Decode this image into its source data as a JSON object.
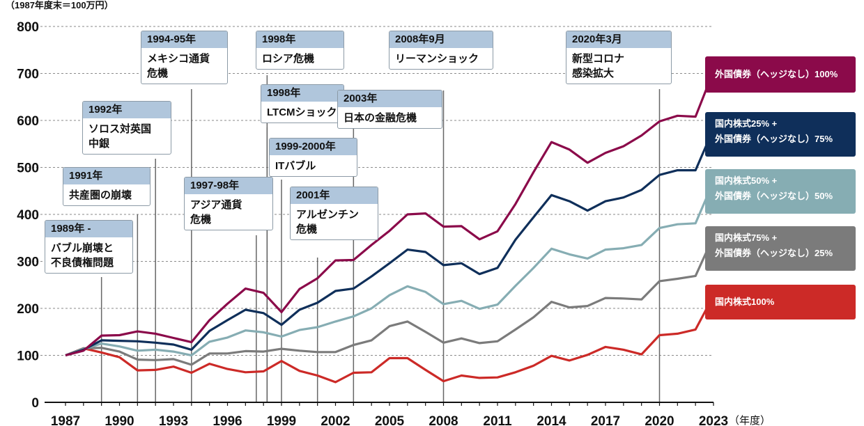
{
  "unit_label": "（1987年度末＝100万円）",
  "x_unit_label": "（年度）",
  "colors": {
    "foreign_bonds_100": "#8b0a4a",
    "domestic_25": "#0f2f5a",
    "domestic_50": "#86adb3",
    "domestic_75": "#7b7b7b",
    "domestic_100": "#cc2a27",
    "event_line": "#666666",
    "grid": "#8a8a8a"
  },
  "events": [
    {
      "year": "1989年 -",
      "text": "バブル崩壊と\n不良債権問題",
      "line_x": 1989.0
    },
    {
      "year": "1991年",
      "text": "共産圏の崩壊",
      "line_x": 1991.0
    },
    {
      "year": "1992年",
      "text": "ソロス対英国\n中銀",
      "line_x": 1992.0
    },
    {
      "year": "1994-95年",
      "text": "メキシコ通貨\n危機",
      "line_x": 1994.0
    },
    {
      "year": "1997-98年",
      "text": "アジア通貨\n危機",
      "line_x": 1997.6
    },
    {
      "year": "1998年",
      "text": "ロシア危機",
      "line_x": 1998.2
    },
    {
      "year": "1998年",
      "text": "LTCMショック",
      "line_x": 1998.2
    },
    {
      "year": "1999-2000年",
      "text": "ITバブル",
      "line_x": 1999.0
    },
    {
      "year": "2001年",
      "text": "アルゼンチン\n危機",
      "line_x": 2001.0
    },
    {
      "year": "2003年",
      "text": "日本の金融危機",
      "line_x": 2003.0
    },
    {
      "year": "2008年9月",
      "text": "リーマンショック",
      "line_x": 2008.0
    },
    {
      "year": "2020年3月",
      "text": "新型コロナ\n感染拡大",
      "line_x": 2020.0
    }
  ],
  "chart_data": {
    "type": "line",
    "title": "",
    "xlabel": "（年度）",
    "ylabel": "（1987年度末＝100万円）",
    "x": [
      1987,
      1988,
      1989,
      1990,
      1991,
      1992,
      1993,
      1994,
      1995,
      1996,
      1997,
      1998,
      1999,
      2000,
      2001,
      2002,
      2003,
      2004,
      2005,
      2006,
      2007,
      2008,
      2009,
      2010,
      2011,
      2012,
      2013,
      2014,
      2015,
      2016,
      2017,
      2018,
      2019,
      2020,
      2021,
      2022,
      2023
    ],
    "x_ticks": [
      1987,
      1990,
      1993,
      1996,
      1999,
      2002,
      2005,
      2008,
      2011,
      2014,
      2017,
      2020,
      2023
    ],
    "ylim": [
      0,
      800
    ],
    "y_ticks": [
      0,
      100,
      200,
      300,
      400,
      500,
      600,
      700,
      800
    ],
    "grid": "horizontal dashed",
    "legend": "right",
    "series": [
      {
        "name": "外国債券（ヘッジなし）100%",
        "color_key": "foreign_bonds_100",
        "values": [
          100,
          110,
          142,
          143,
          151,
          146,
          137,
          128,
          175,
          210,
          242,
          233,
          192,
          241,
          264,
          302,
          303,
          335,
          365,
          400,
          402,
          374,
          375,
          347,
          364,
          422,
          490,
          554,
          538,
          510,
          531,
          545,
          568,
          598,
          610,
          608,
          705
        ]
      },
      {
        "name": "国内株式25% + 外国債券（ヘッジなし）75%",
        "color_key": "domestic_25",
        "values": [
          100,
          112,
          132,
          131,
          130,
          127,
          123,
          112,
          152,
          175,
          197,
          190,
          165,
          197,
          212,
          237,
          242,
          268,
          296,
          325,
          320,
          292,
          296,
          273,
          286,
          346,
          394,
          441,
          428,
          408,
          428,
          436,
          452,
          484,
          494,
          494,
          582
        ]
      },
      {
        "name": "国内株式50% + 外国債券（ヘッジなし）50%",
        "color_key": "domestic_50",
        "values": [
          100,
          113,
          125,
          119,
          110,
          112,
          108,
          100,
          129,
          138,
          153,
          149,
          140,
          154,
          160,
          172,
          183,
          200,
          228,
          247,
          235,
          209,
          216,
          199,
          208,
          248,
          286,
          327,
          315,
          306,
          325,
          328,
          335,
          371,
          379,
          381,
          470
        ]
      },
      {
        "name": "国内株式75% + 外国債券（ヘッジなし）25%",
        "color_key": "domestic_75",
        "values": [
          100,
          115,
          116,
          108,
          91,
          90,
          92,
          80,
          104,
          104,
          109,
          108,
          114,
          110,
          107,
          107,
          122,
          132,
          162,
          172,
          150,
          127,
          136,
          126,
          130,
          155,
          181,
          214,
          202,
          205,
          222,
          221,
          219,
          258,
          263,
          269,
          353
        ]
      },
      {
        "name": "国内株式100%",
        "color_key": "domestic_100",
        "values": [
          100,
          115,
          106,
          96,
          68,
          69,
          76,
          63,
          82,
          71,
          64,
          66,
          88,
          67,
          57,
          43,
          63,
          64,
          94,
          94,
          69,
          45,
          57,
          52,
          53,
          64,
          78,
          99,
          89,
          101,
          118,
          112,
          102,
          143,
          146,
          155,
          227
        ]
      }
    ]
  },
  "legend_labels": [
    {
      "text": "外国債券（ヘッジなし）100%",
      "color_key": "foreign_bonds_100"
    },
    {
      "text": "国内株式25% +\n外国債券（ヘッジなし）75%",
      "color_key": "domestic_25"
    },
    {
      "text": "国内株式50% +\n外国債券（ヘッジなし）50%",
      "color_key": "domestic_50"
    },
    {
      "text": "国内株式75% +\n外国債券（ヘッジなし）25%",
      "color_key": "domestic_75"
    },
    {
      "text": "国内株式100%",
      "color_key": "domestic_100"
    }
  ]
}
